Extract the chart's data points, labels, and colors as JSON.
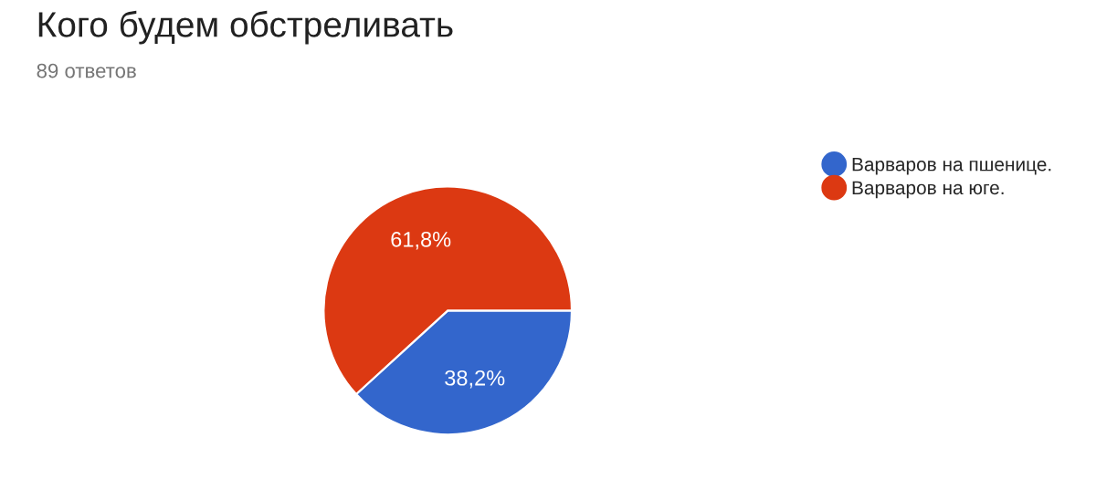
{
  "chart_data": {
    "type": "pie",
    "title": "Кого будем обстреливать",
    "subtitle": "89 ответов",
    "categories": [
      "Варваров на пшенице.",
      "Варваров на юге."
    ],
    "values": [
      38.2,
      61.8
    ],
    "colors": [
      "#3366cc",
      "#dc3912"
    ],
    "value_labels": [
      "38,2%",
      "61,8%"
    ],
    "legend": "right"
  }
}
